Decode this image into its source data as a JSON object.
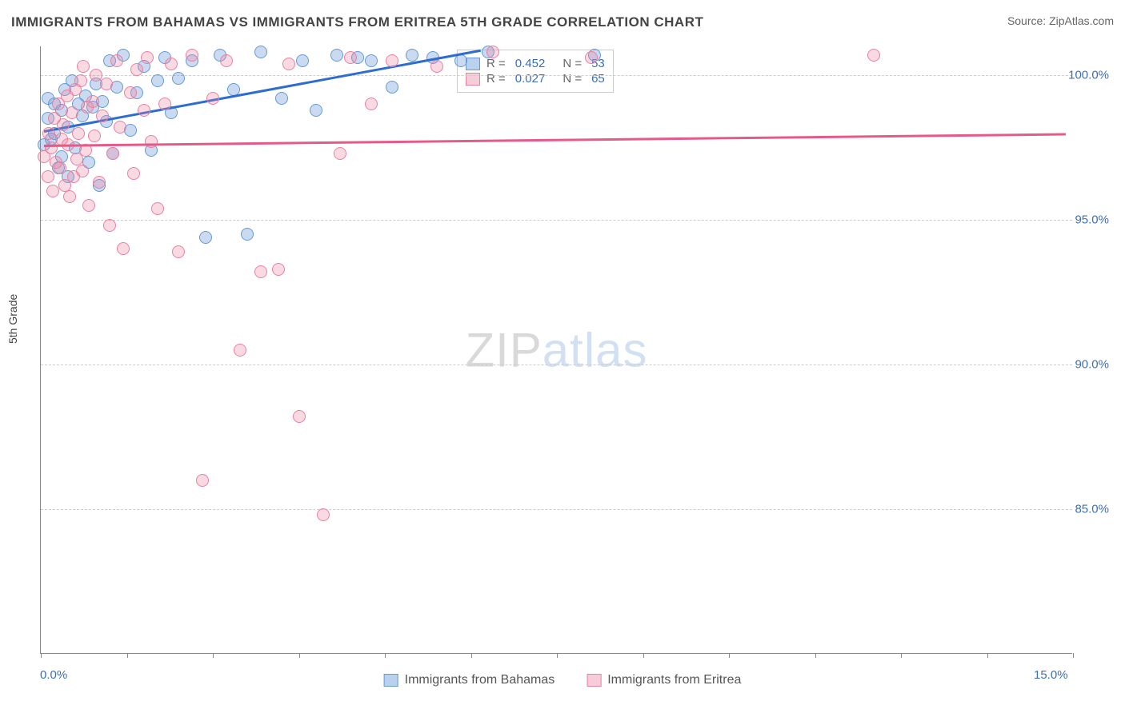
{
  "title": "IMMIGRANTS FROM BAHAMAS VS IMMIGRANTS FROM ERITREA 5TH GRADE CORRELATION CHART",
  "source_label": "Source:",
  "source_name": "ZipAtlas.com",
  "ylabel": "5th Grade",
  "watermark_a": "ZIP",
  "watermark_b": "atlas",
  "chart": {
    "type": "scatter",
    "xlim": [
      0,
      15
    ],
    "ylim": [
      80,
      101
    ],
    "xtick_labels": {
      "0": "0.0%",
      "15": "15.0%"
    },
    "xtick_positions": [
      0,
      1.25,
      2.5,
      3.75,
      5,
      6.25,
      7.5,
      8.75,
      10,
      11.25,
      12.5,
      13.75,
      15
    ],
    "ytick_labels": {
      "85": "85.0%",
      "90": "90.0%",
      "95": "95.0%",
      "100": "100.0%"
    },
    "grid_color": "#cccccc",
    "axis_color": "#888888",
    "background_color": "#ffffff",
    "marker_size": 16
  },
  "series": [
    {
      "name": "Immigrants from Bahamas",
      "color_fill": "rgba(102,153,214,0.35)",
      "color_stroke": "#6699d6",
      "shape": "circle",
      "R": "0.452",
      "N": "53",
      "trend": {
        "x1": 0.05,
        "y1": 98.1,
        "x2": 6.4,
        "y2": 100.9,
        "color": "#2d6cd0",
        "width": 2.5
      },
      "points": [
        [
          0.05,
          97.6
        ],
        [
          0.1,
          98.5
        ],
        [
          0.1,
          99.2
        ],
        [
          0.15,
          97.8
        ],
        [
          0.2,
          98.0
        ],
        [
          0.2,
          99.0
        ],
        [
          0.25,
          96.8
        ],
        [
          0.3,
          97.2
        ],
        [
          0.3,
          98.8
        ],
        [
          0.35,
          99.5
        ],
        [
          0.4,
          98.2
        ],
        [
          0.4,
          96.5
        ],
        [
          0.45,
          99.8
        ],
        [
          0.5,
          97.5
        ],
        [
          0.55,
          99.0
        ],
        [
          0.6,
          98.6
        ],
        [
          0.65,
          99.3
        ],
        [
          0.7,
          97.0
        ],
        [
          0.75,
          98.9
        ],
        [
          0.8,
          99.7
        ],
        [
          0.85,
          96.2
        ],
        [
          0.9,
          99.1
        ],
        [
          0.95,
          98.4
        ],
        [
          1.0,
          100.5
        ],
        [
          1.05,
          97.3
        ],
        [
          1.1,
          99.6
        ],
        [
          1.2,
          100.7
        ],
        [
          1.3,
          98.1
        ],
        [
          1.4,
          99.4
        ],
        [
          1.5,
          100.3
        ],
        [
          1.6,
          97.4
        ],
        [
          1.7,
          99.8
        ],
        [
          1.8,
          100.6
        ],
        [
          1.9,
          98.7
        ],
        [
          2.0,
          99.9
        ],
        [
          2.2,
          100.5
        ],
        [
          2.4,
          94.4
        ],
        [
          2.6,
          100.7
        ],
        [
          2.8,
          99.5
        ],
        [
          3.0,
          94.5
        ],
        [
          3.2,
          100.8
        ],
        [
          3.5,
          99.2
        ],
        [
          3.8,
          100.5
        ],
        [
          4.0,
          98.8
        ],
        [
          4.3,
          100.7
        ],
        [
          4.6,
          100.6
        ],
        [
          4.8,
          100.5
        ],
        [
          5.1,
          99.6
        ],
        [
          5.4,
          100.7
        ],
        [
          5.7,
          100.6
        ],
        [
          6.1,
          100.5
        ],
        [
          6.5,
          100.8
        ],
        [
          8.05,
          100.7
        ]
      ]
    },
    {
      "name": "Immigrants from Eritrea",
      "color_fill": "rgba(235,128,160,0.30)",
      "color_stroke": "#eb80a0",
      "shape": "circle",
      "R": "0.027",
      "N": "65",
      "trend": {
        "x1": 0.05,
        "y1": 97.6,
        "x2": 14.9,
        "y2": 98.0,
        "color": "#e55a89",
        "width": 2.5
      },
      "points": [
        [
          0.05,
          97.2
        ],
        [
          0.1,
          96.5
        ],
        [
          0.12,
          98.0
        ],
        [
          0.15,
          97.5
        ],
        [
          0.18,
          96.0
        ],
        [
          0.2,
          98.5
        ],
        [
          0.22,
          97.0
        ],
        [
          0.25,
          99.0
        ],
        [
          0.28,
          96.8
        ],
        [
          0.3,
          97.8
        ],
        [
          0.32,
          98.3
        ],
        [
          0.35,
          96.2
        ],
        [
          0.38,
          99.3
        ],
        [
          0.4,
          97.6
        ],
        [
          0.42,
          95.8
        ],
        [
          0.45,
          98.7
        ],
        [
          0.48,
          96.5
        ],
        [
          0.5,
          99.5
        ],
        [
          0.52,
          97.1
        ],
        [
          0.55,
          98.0
        ],
        [
          0.58,
          99.8
        ],
        [
          0.6,
          96.7
        ],
        [
          0.62,
          100.3
        ],
        [
          0.65,
          97.4
        ],
        [
          0.68,
          98.9
        ],
        [
          0.7,
          95.5
        ],
        [
          0.75,
          99.1
        ],
        [
          0.78,
          97.9
        ],
        [
          0.8,
          100.0
        ],
        [
          0.85,
          96.3
        ],
        [
          0.9,
          98.6
        ],
        [
          0.95,
          99.7
        ],
        [
          1.0,
          94.8
        ],
        [
          1.05,
          97.3
        ],
        [
          1.1,
          100.5
        ],
        [
          1.15,
          98.2
        ],
        [
          1.2,
          94.0
        ],
        [
          1.3,
          99.4
        ],
        [
          1.35,
          96.6
        ],
        [
          1.4,
          100.2
        ],
        [
          1.5,
          98.8
        ],
        [
          1.55,
          100.6
        ],
        [
          1.6,
          97.7
        ],
        [
          1.7,
          95.4
        ],
        [
          1.8,
          99.0
        ],
        [
          1.9,
          100.4
        ],
        [
          2.0,
          93.9
        ],
        [
          2.2,
          100.7
        ],
        [
          2.35,
          86.0
        ],
        [
          2.5,
          99.2
        ],
        [
          2.7,
          100.5
        ],
        [
          2.9,
          90.5
        ],
        [
          3.2,
          93.2
        ],
        [
          3.45,
          93.3
        ],
        [
          3.6,
          100.4
        ],
        [
          3.75,
          88.2
        ],
        [
          4.1,
          84.8
        ],
        [
          4.35,
          97.3
        ],
        [
          4.5,
          100.6
        ],
        [
          4.8,
          99.0
        ],
        [
          5.1,
          100.5
        ],
        [
          5.75,
          100.3
        ],
        [
          6.57,
          100.8
        ],
        [
          8.0,
          100.6
        ],
        [
          12.1,
          100.7
        ]
      ]
    }
  ],
  "legend": {
    "r_label": "R =",
    "n_label": "N ="
  },
  "bottom_legend": [
    {
      "swatch": "blue",
      "label": "Immigrants from Bahamas"
    },
    {
      "swatch": "pink",
      "label": "Immigrants from Eritrea"
    }
  ]
}
